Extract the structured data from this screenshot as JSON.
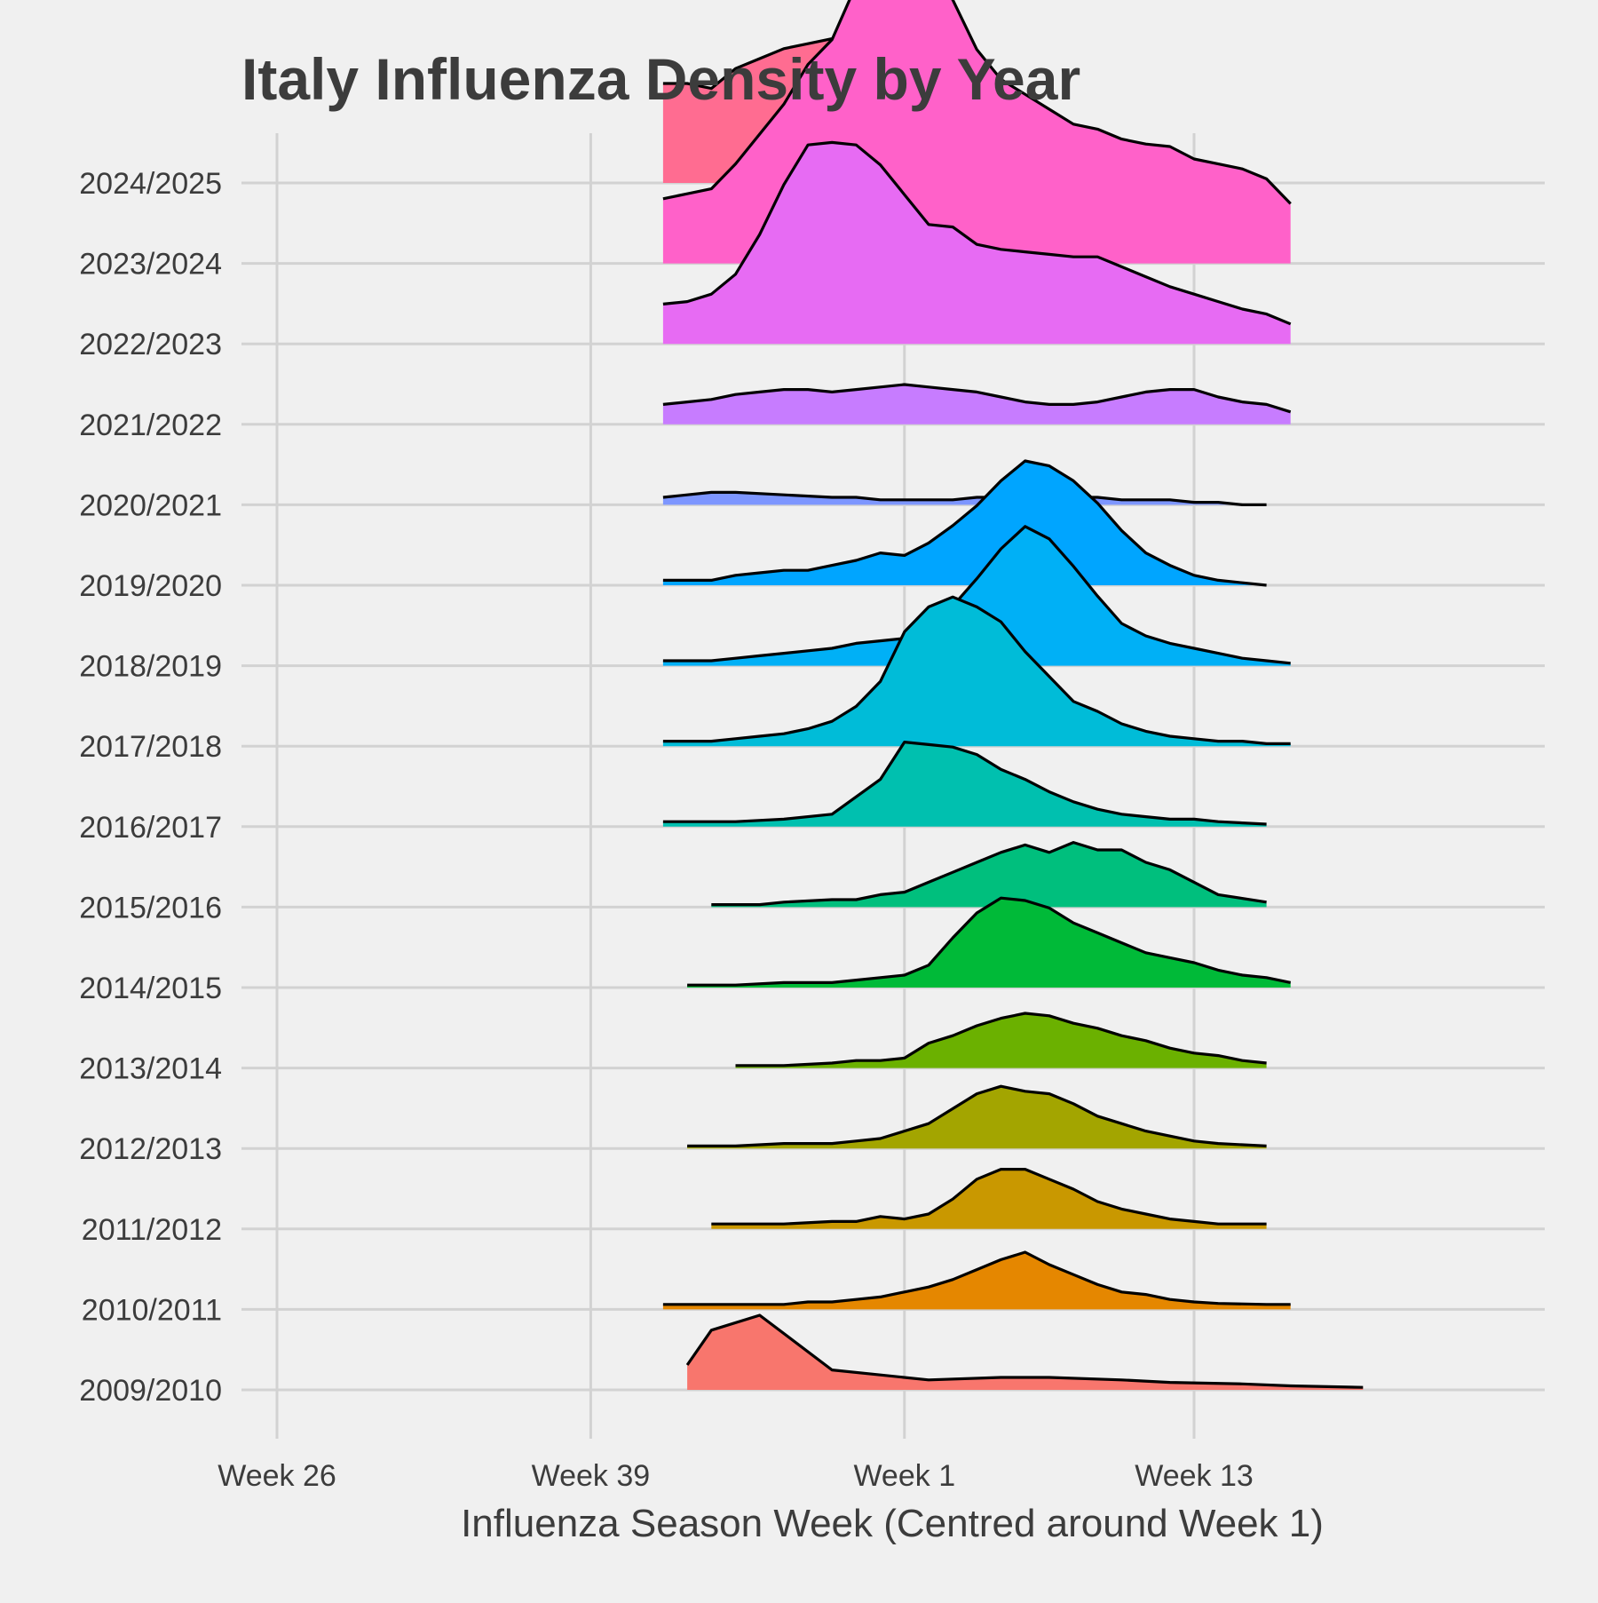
{
  "chart_data": {
    "type": "area",
    "subtype": "ridgeline",
    "title": "Italy Influenza Density by Year",
    "xlabel": "Influenza Season Week (Centred around Week 1)",
    "ylabel": "",
    "x_unit": "week offset from Week 1",
    "xlim": [
      -25,
      30
    ],
    "x_ticks": [
      {
        "value": -24,
        "label": "Week 26"
      },
      {
        "value": -11,
        "label": "Week 39"
      },
      {
        "value": 2,
        "label": "Week 1"
      },
      {
        "value": 14,
        "label": "Week 13"
      }
    ],
    "legend": "none",
    "grid": true,
    "series": [
      {
        "name": "2009/2010",
        "color": "#F8766D",
        "x": [
          -7,
          -6,
          -4,
          -1,
          1,
          3,
          6,
          8,
          11,
          13,
          16,
          18,
          21
        ],
        "y": [
          0.05,
          0.12,
          0.15,
          0.04,
          0.03,
          0.02,
          0.025,
          0.025,
          0.02,
          0.015,
          0.012,
          0.008,
          0.005
        ]
      },
      {
        "name": "2010/2011",
        "color": "#E58700",
        "x": [
          -8,
          -7,
          -6,
          -5,
          -3,
          -2,
          -1,
          0,
          1,
          2,
          3,
          4,
          5,
          6,
          7,
          8,
          9,
          10,
          11,
          12,
          13,
          14,
          15,
          17,
          18
        ],
        "y": [
          0.01,
          0.01,
          0.01,
          0.01,
          0.01,
          0.015,
          0.015,
          0.02,
          0.025,
          0.035,
          0.045,
          0.06,
          0.08,
          0.1,
          0.115,
          0.09,
          0.07,
          0.05,
          0.035,
          0.03,
          0.02,
          0.015,
          0.012,
          0.01,
          0.01
        ]
      },
      {
        "name": "2011/2012",
        "color": "#C99800",
        "x": [
          -6,
          -5,
          -3,
          -1,
          0,
          1,
          2,
          3,
          4,
          5,
          6,
          7,
          8,
          9,
          10,
          11,
          12,
          13,
          14,
          15,
          17
        ],
        "y": [
          0.01,
          0.01,
          0.01,
          0.015,
          0.015,
          0.025,
          0.02,
          0.03,
          0.06,
          0.1,
          0.12,
          0.12,
          0.1,
          0.08,
          0.055,
          0.04,
          0.03,
          0.02,
          0.015,
          0.01,
          0.01
        ]
      },
      {
        "name": "2012/2013",
        "color": "#A3A500",
        "x": [
          -7,
          -6,
          -5,
          -3,
          -1,
          0,
          1,
          2,
          3,
          4,
          5,
          6,
          7,
          8,
          9,
          10,
          11,
          12,
          13,
          14,
          15,
          17
        ],
        "y": [
          0.005,
          0.005,
          0.005,
          0.01,
          0.01,
          0.015,
          0.02,
          0.035,
          0.05,
          0.08,
          0.11,
          0.125,
          0.115,
          0.11,
          0.09,
          0.065,
          0.05,
          0.035,
          0.025,
          0.015,
          0.01,
          0.005
        ]
      },
      {
        "name": "2013/2014",
        "color": "#6BB100",
        "x": [
          -5,
          -4,
          -3,
          -1,
          0,
          1,
          2,
          3,
          4,
          5,
          6,
          7,
          8,
          9,
          10,
          11,
          12,
          13,
          14,
          15,
          16,
          17
        ],
        "y": [
          0.005,
          0.005,
          0.005,
          0.01,
          0.015,
          0.015,
          0.02,
          0.05,
          0.065,
          0.085,
          0.1,
          0.11,
          0.105,
          0.09,
          0.08,
          0.065,
          0.055,
          0.04,
          0.03,
          0.025,
          0.015,
          0.01
        ]
      },
      {
        "name": "2014/2015",
        "color": "#00BA38",
        "x": [
          -7,
          -6,
          -5,
          -3,
          -1,
          0,
          1,
          2,
          3,
          4,
          5,
          6,
          7,
          8,
          9,
          10,
          11,
          12,
          13,
          14,
          15,
          16,
          17,
          18
        ],
        "y": [
          0.005,
          0.005,
          0.005,
          0.01,
          0.01,
          0.015,
          0.02,
          0.025,
          0.045,
          0.1,
          0.15,
          0.18,
          0.175,
          0.16,
          0.13,
          0.11,
          0.09,
          0.07,
          0.06,
          0.05,
          0.035,
          0.025,
          0.02,
          0.01
        ]
      },
      {
        "name": "2015/2016",
        "color": "#00BF7D",
        "x": [
          -6,
          -5,
          -4,
          -3,
          -1,
          0,
          1,
          2,
          3,
          4,
          5,
          6,
          7,
          8,
          9,
          10,
          11,
          12,
          13,
          14,
          15,
          17
        ],
        "y": [
          0.005,
          0.005,
          0.005,
          0.01,
          0.015,
          0.015,
          0.025,
          0.03,
          0.05,
          0.07,
          0.09,
          0.11,
          0.125,
          0.11,
          0.13,
          0.115,
          0.115,
          0.09,
          0.075,
          0.05,
          0.025,
          0.01
        ]
      },
      {
        "name": "2016/2017",
        "color": "#00C0AF",
        "x": [
          -8,
          -7,
          -6,
          -5,
          -3,
          -1,
          0,
          1,
          2,
          3,
          4,
          5,
          6,
          7,
          8,
          9,
          10,
          11,
          12,
          13,
          14,
          15,
          17
        ],
        "y": [
          0.01,
          0.01,
          0.01,
          0.01,
          0.015,
          0.025,
          0.06,
          0.095,
          0.17,
          0.165,
          0.16,
          0.145,
          0.115,
          0.095,
          0.07,
          0.05,
          0.035,
          0.025,
          0.02,
          0.015,
          0.015,
          0.01,
          0.005
        ]
      },
      {
        "name": "2017/2018",
        "color": "#00BCD8",
        "x": [
          -8,
          -7,
          -6,
          -5,
          -4,
          -3,
          -2,
          -1,
          0,
          1,
          2,
          3,
          4,
          5,
          6,
          7,
          8,
          9,
          10,
          11,
          12,
          13,
          14,
          15,
          16,
          17,
          18
        ],
        "y": [
          0.01,
          0.01,
          0.01,
          0.015,
          0.02,
          0.025,
          0.035,
          0.05,
          0.08,
          0.13,
          0.23,
          0.28,
          0.3,
          0.28,
          0.25,
          0.19,
          0.14,
          0.09,
          0.07,
          0.045,
          0.03,
          0.02,
          0.015,
          0.01,
          0.01,
          0.005,
          0.005
        ]
      },
      {
        "name": "2018/2019",
        "color": "#00B0F6",
        "x": [
          -8,
          -7,
          -6,
          -5,
          -4,
          -3,
          -2,
          -1,
          0,
          1,
          2,
          3,
          4,
          5,
          6,
          7,
          8,
          9,
          10,
          11,
          12,
          13,
          14,
          15,
          16,
          17,
          18
        ],
        "y": [
          0.01,
          0.01,
          0.01,
          0.015,
          0.02,
          0.025,
          0.03,
          0.035,
          0.045,
          0.05,
          0.055,
          0.08,
          0.12,
          0.175,
          0.235,
          0.28,
          0.255,
          0.2,
          0.14,
          0.085,
          0.06,
          0.045,
          0.035,
          0.025,
          0.015,
          0.01,
          0.005
        ]
      },
      {
        "name": "2019/2020",
        "color": "#00A5FF",
        "x": [
          -8,
          -7,
          -6,
          -5,
          -4,
          -3,
          -2,
          -1,
          0,
          1,
          2,
          3,
          4,
          5,
          6,
          7,
          8,
          9,
          10,
          11,
          12,
          13,
          14,
          15,
          16,
          17
        ],
        "y": [
          0.01,
          0.01,
          0.01,
          0.02,
          0.025,
          0.03,
          0.03,
          0.04,
          0.05,
          0.065,
          0.06,
          0.085,
          0.12,
          0.16,
          0.21,
          0.25,
          0.24,
          0.21,
          0.165,
          0.11,
          0.065,
          0.04,
          0.02,
          0.01,
          0.005,
          0.0
        ]
      },
      {
        "name": "2020/2021",
        "color": "#7D96FF",
        "x": [
          -8,
          -7,
          -6,
          -5,
          -3,
          -1,
          0,
          1,
          2,
          4,
          5,
          6,
          7,
          8,
          9,
          10,
          11,
          12,
          13,
          14,
          15,
          16,
          17
        ],
        "y": [
          0.015,
          0.02,
          0.025,
          0.025,
          0.02,
          0.015,
          0.015,
          0.01,
          0.01,
          0.01,
          0.015,
          0.015,
          0.015,
          0.015,
          0.015,
          0.015,
          0.01,
          0.01,
          0.01,
          0.005,
          0.005,
          0.0,
          0.0
        ]
      },
      {
        "name": "2021/2022",
        "color": "#C77CFF",
        "x": [
          -8,
          -7,
          -6,
          -5,
          -4,
          -3,
          -2,
          -1,
          0,
          1,
          2,
          3,
          4,
          5,
          6,
          7,
          8,
          9,
          10,
          11,
          12,
          13,
          14,
          15,
          16,
          17,
          18
        ],
        "y": [
          0.04,
          0.045,
          0.05,
          0.06,
          0.065,
          0.07,
          0.07,
          0.065,
          0.07,
          0.075,
          0.08,
          0.075,
          0.07,
          0.065,
          0.055,
          0.045,
          0.04,
          0.04,
          0.045,
          0.055,
          0.065,
          0.07,
          0.07,
          0.055,
          0.045,
          0.04,
          0.025
        ]
      },
      {
        "name": "2022/2023",
        "color": "#E76BF3",
        "x": [
          -8,
          -7,
          -6,
          -5,
          -4,
          -3,
          -2,
          -1,
          0,
          1,
          2,
          3,
          4,
          5,
          6,
          7,
          8,
          9,
          10,
          11,
          12,
          13,
          14,
          15,
          16,
          17,
          18
        ],
        "y": [
          0.08,
          0.085,
          0.1,
          0.14,
          0.22,
          0.32,
          0.4,
          0.405,
          0.4,
          0.36,
          0.3,
          0.24,
          0.235,
          0.2,
          0.19,
          0.185,
          0.18,
          0.175,
          0.175,
          0.155,
          0.135,
          0.115,
          0.1,
          0.085,
          0.07,
          0.06,
          0.04
        ]
      },
      {
        "name": "2023/2024",
        "color": "#FF61C9",
        "x": [
          -8,
          -7,
          -6,
          -5,
          -4,
          -3,
          -2,
          -1,
          0,
          1,
          2,
          3,
          4,
          5,
          6,
          7,
          8,
          9,
          10,
          11,
          12,
          13,
          14,
          15,
          16,
          17,
          18
        ],
        "y": [
          0.13,
          0.14,
          0.15,
          0.2,
          0.26,
          0.32,
          0.4,
          0.45,
          0.56,
          0.64,
          0.64,
          0.6,
          0.53,
          0.43,
          0.37,
          0.34,
          0.31,
          0.28,
          0.27,
          0.25,
          0.24,
          0.235,
          0.21,
          0.2,
          0.19,
          0.17,
          0.12
        ]
      },
      {
        "name": "2024/2025",
        "color": "#FF6C91",
        "x": [
          -8,
          -7,
          -6,
          -5,
          -4,
          -3,
          -2,
          -1,
          0,
          1,
          2
        ],
        "y": [
          0.2,
          0.2,
          0.19,
          0.23,
          0.25,
          0.27,
          0.28,
          0.29,
          0.3,
          0.28,
          0.22
        ]
      }
    ]
  }
}
